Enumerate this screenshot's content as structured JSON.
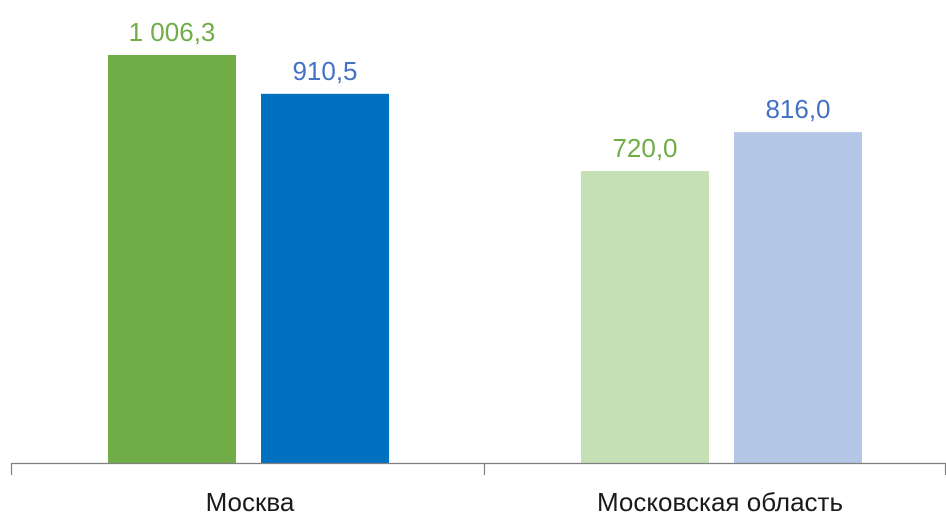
{
  "chart_data": {
    "type": "bar",
    "categories": [
      "Москва",
      "Московская область"
    ],
    "bars": [
      {
        "category": "Москва",
        "value": 1006.3,
        "label": "1 006,3",
        "color": "#70AD47",
        "label_color": "#70AD47"
      },
      {
        "category": "Москва",
        "value": 910.5,
        "label": "910,5",
        "color": "#0070C0",
        "label_color": "#4472C4"
      },
      {
        "category": "Московская область",
        "value": 720.0,
        "label": "720,0",
        "color": "#C5E0B4",
        "label_color": "#70AD47"
      },
      {
        "category": "Московская область",
        "value": 816.0,
        "label": "816,0",
        "color": "#B4C7E7",
        "label_color": "#4472C4"
      }
    ],
    "ylim": [
      0,
      1100
    ],
    "grid": false,
    "legend": "none",
    "axis_color": "#808080"
  }
}
